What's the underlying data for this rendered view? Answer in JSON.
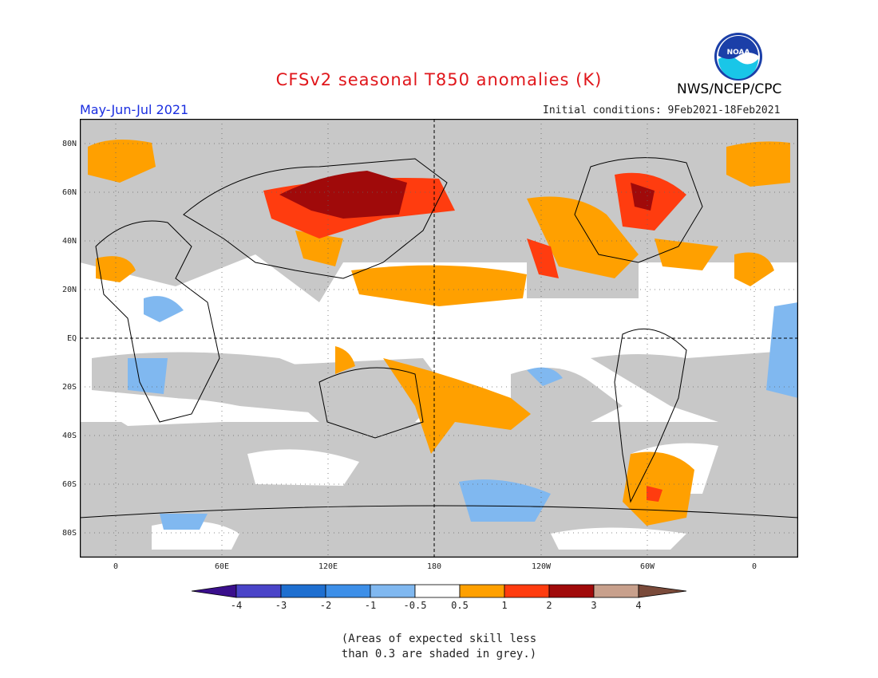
{
  "header": {
    "title": "CFSv2 seasonal T850 anomalies (K)",
    "season": "May-Jun-Jul 2021",
    "initial_conditions": "Initial conditions: 9Feb2021-18Feb2021",
    "agency": "NWS/NCEP/CPC",
    "logo_text": "NOAA"
  },
  "map": {
    "projection": "cylindrical equidistant, centered 180",
    "lat_labels": [
      "80N",
      "60N",
      "40N",
      "20N",
      "EQ",
      "20S",
      "40S",
      "60S",
      "80S"
    ],
    "lon_labels": [
      "0",
      "60E",
      "120E",
      "180",
      "120W",
      "60W",
      "0"
    ],
    "equator_line": "dashed",
    "dateline_line": "dashed",
    "gridlines": "dotted"
  },
  "legend": {
    "tick_labels": [
      "-4",
      "-3",
      "-2",
      "-1",
      "-0.5",
      "0.5",
      "1",
      "2",
      "3",
      "4"
    ],
    "colors": {
      "lt_-4": "#3a0f8c",
      "-4_-3": "#4a44c8",
      "-3_-2": "#1e6fd0",
      "-2_-1": "#3d8fe8",
      "-1_-0.5": "#80b8f0",
      "-0.5_0.5": "#ffffff",
      "0.5_1": "#ffa000",
      "1_2": "#ff3c0f",
      "2_3": "#a00a0a",
      "3_4": "#c8a08c",
      "gt_4": "#7a4a3a"
    },
    "skill_mask_color": "#c8c8c8"
  },
  "footnote": {
    "line1": "(Areas of expected skill less",
    "line2": "than 0.3 are shaded in grey.)"
  }
}
